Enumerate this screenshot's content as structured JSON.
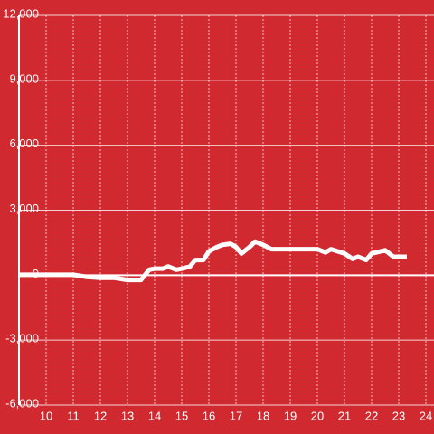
{
  "chart_data": {
    "type": "line",
    "x": [
      9,
      10,
      11,
      11.5,
      12,
      12.5,
      13,
      13.5,
      13.8,
      14,
      14.3,
      14.5,
      14.8,
      15,
      15.3,
      15.5,
      15.8,
      16,
      16.3,
      16.5,
      16.8,
      17,
      17.2,
      17.5,
      17.7,
      18,
      18.3,
      19,
      19.5,
      20,
      20.3,
      20.5,
      21,
      21.3,
      21.5,
      21.8,
      22,
      22.5,
      22.8,
      23.3
    ],
    "series": [
      {
        "color": "#ffffff",
        "values": [
          20,
          20,
          20,
          -80,
          -120,
          -120,
          -220,
          -220,
          250,
          300,
          300,
          400,
          250,
          300,
          400,
          700,
          700,
          1100,
          1300,
          1400,
          1450,
          1300,
          1000,
          1300,
          1550,
          1400,
          1200,
          1200,
          1200,
          1200,
          1050,
          1200,
          1000,
          750,
          850,
          700,
          1000,
          1150,
          850,
          850
        ]
      }
    ],
    "xlim": [
      9,
      24.3
    ],
    "xticks": [
      10,
      11,
      12,
      13,
      14,
      15,
      16,
      17,
      18,
      19,
      20,
      21,
      22,
      23,
      24
    ],
    "ylim": [
      -6000,
      12000
    ],
    "yticks": [
      {
        "value": -6000,
        "label": "-6,000"
      },
      {
        "value": -3000,
        "label": "-3,000"
      },
      0,
      {
        "value": 3000,
        "label": "3,000"
      },
      {
        "value": 6000,
        "label": "6,000"
      },
      {
        "value": 9000,
        "label": "9,000"
      },
      {
        "value": 12000,
        "label": "12,000"
      }
    ],
    "grid": true
  }
}
